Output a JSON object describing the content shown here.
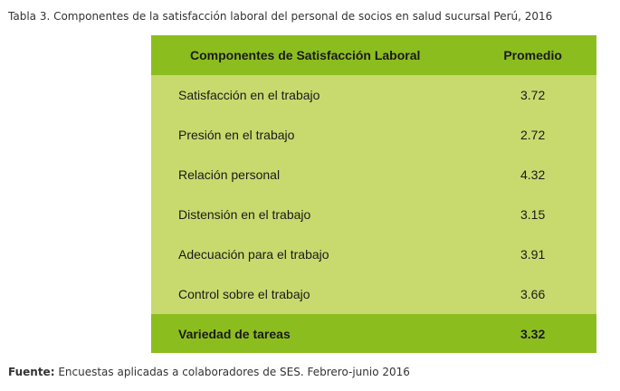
{
  "caption": "Tabla 3. Componentes de la satisfacción laboral del personal de socios en salud sucursal Perú, 2016",
  "table": {
    "headers": [
      "Componentes de Satisfacción Laboral",
      "Promedio"
    ],
    "rows": [
      {
        "component": "Satisfacción en el trabajo",
        "average": "3.72"
      },
      {
        "component": "Presión en el trabajo",
        "average": "2.72"
      },
      {
        "component": "Relación personal",
        "average": "4.32"
      },
      {
        "component": "Distensión en el trabajo",
        "average": "3.15"
      },
      {
        "component": "Adecuación para el trabajo",
        "average": "3.91"
      },
      {
        "component": "Control sobre el trabajo",
        "average": "3.66"
      }
    ],
    "total_row": {
      "component": "Variedad de tareas",
      "average": "3.32"
    },
    "colors": {
      "header_bg": "#8cbd1f",
      "body_bg": "#c8da6e"
    }
  },
  "source": {
    "label": "Fuente:",
    "text": "Encuestas aplicadas a colaboradores de SES. Febrero-junio 2016"
  }
}
